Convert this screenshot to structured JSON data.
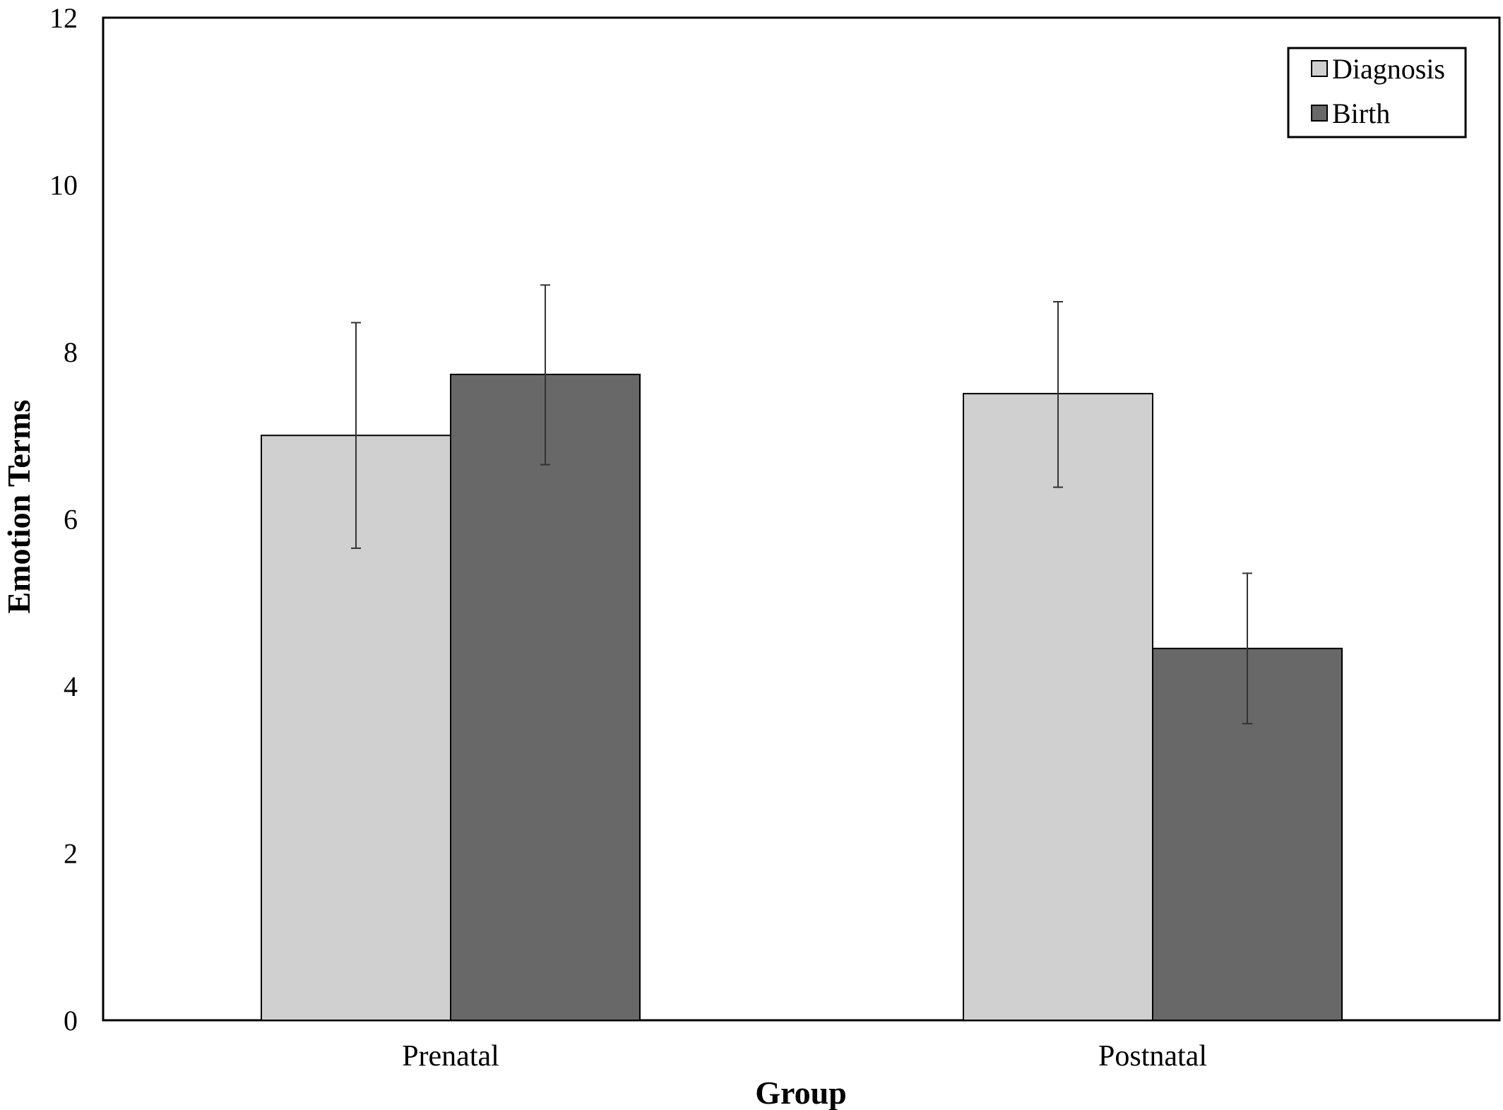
{
  "chart_data": {
    "type": "bar",
    "title": "",
    "xlabel": "Group",
    "ylabel": "Emotion Terms",
    "categories": [
      "Prenatal",
      "Postnatal"
    ],
    "ylim": [
      0,
      12
    ],
    "yticks": [
      0,
      2,
      4,
      6,
      8,
      10,
      12
    ],
    "grid": false,
    "legend_position": "top-right",
    "error_bars": true,
    "series": [
      {
        "name": "Diagnosis",
        "color": "#d0d0d0",
        "values": [
          7.0,
          7.5
        ],
        "error_low": [
          5.65,
          6.38
        ],
        "error_high": [
          8.35,
          8.6
        ]
      },
      {
        "name": "Birth",
        "color": "#686868",
        "values": [
          7.73,
          4.45
        ],
        "error_low": [
          6.65,
          3.55
        ],
        "error_high": [
          8.8,
          5.35
        ]
      }
    ]
  }
}
